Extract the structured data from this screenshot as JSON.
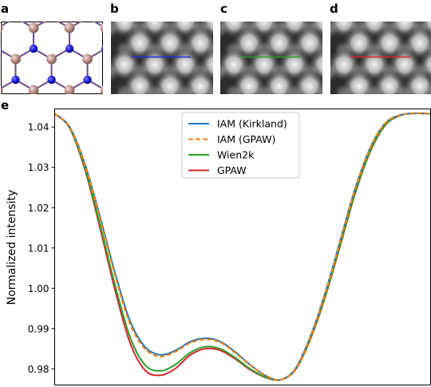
{
  "panels": {
    "a": "a",
    "b": "b",
    "c": "c",
    "d": "d",
    "e": "e"
  },
  "image_panels": [
    {
      "label": "b",
      "line_color": "#1f2fd6"
    },
    {
      "label": "c",
      "line_color": "#2c9a2c"
    },
    {
      "label": "d",
      "line_color": "#d62728"
    }
  ],
  "structure_colors": {
    "atom_b": "#1b1bd8",
    "atom_n": "#b98f86",
    "bond": "#6a4a8a"
  },
  "chart_data": {
    "type": "line",
    "title": "",
    "xlabel": "",
    "ylabel": "Normalized intensity",
    "ylim": [
      0.976,
      1.0445
    ],
    "xlim": [
      0,
      1
    ],
    "yticks": [
      0.98,
      0.99,
      1.0,
      1.01,
      1.02,
      1.03,
      1.04
    ],
    "ytick_labels": [
      "0.98",
      "0.99",
      "1.00",
      "1.01",
      "1.02",
      "1.03",
      "1.04"
    ],
    "legend_position": "top-center",
    "series": [
      {
        "name": "IAM (Kirkland)",
        "color": "#1f77b4",
        "dash": "solid",
        "x": [
          0,
          0.04,
          0.08,
          0.12,
          0.16,
          0.2,
          0.24,
          0.28,
          0.32,
          0.36,
          0.4,
          0.44,
          0.48,
          0.52,
          0.56,
          0.6,
          0.64,
          0.68,
          0.72,
          0.76,
          0.8,
          0.84,
          0.88,
          0.92,
          0.96,
          1.0
        ],
        "y": [
          1.0433,
          1.04,
          1.031,
          1.018,
          1.004,
          0.992,
          0.9855,
          0.9835,
          0.9845,
          0.9867,
          0.9876,
          0.9868,
          0.9842,
          0.981,
          0.9784,
          0.9773,
          0.98,
          0.988,
          0.999,
          1.012,
          1.025,
          1.035,
          1.041,
          1.043,
          1.0434,
          1.0433
        ]
      },
      {
        "name": "IAM (GPAW)",
        "color": "#ff7f0e",
        "dash": "dashed",
        "x": [
          0,
          0.04,
          0.08,
          0.12,
          0.16,
          0.2,
          0.24,
          0.28,
          0.32,
          0.36,
          0.4,
          0.44,
          0.48,
          0.52,
          0.56,
          0.6,
          0.64,
          0.68,
          0.72,
          0.76,
          0.8,
          0.84,
          0.88,
          0.92,
          0.96,
          1.0
        ],
        "y": [
          1.0433,
          1.04,
          1.0308,
          1.0176,
          1.0034,
          0.9913,
          0.985,
          0.9831,
          0.9842,
          0.9864,
          0.9873,
          0.9866,
          0.984,
          0.9809,
          0.9784,
          0.9773,
          0.9799,
          0.9878,
          0.9988,
          1.0118,
          1.0249,
          1.0349,
          1.041,
          1.043,
          1.0434,
          1.0433
        ]
      },
      {
        "name": "Wien2k",
        "color": "#2ca02c",
        "dash": "solid",
        "x": [
          0,
          0.04,
          0.08,
          0.12,
          0.16,
          0.2,
          0.24,
          0.28,
          0.32,
          0.36,
          0.4,
          0.44,
          0.48,
          0.52,
          0.56,
          0.6,
          0.64,
          0.68,
          0.72,
          0.76,
          0.8,
          0.84,
          0.88,
          0.92,
          0.96,
          1.0
        ],
        "y": [
          1.0433,
          1.0398,
          1.03,
          1.016,
          1.001,
          0.988,
          0.981,
          0.9795,
          0.981,
          0.984,
          0.9855,
          0.985,
          0.9828,
          0.98,
          0.978,
          0.9773,
          0.9798,
          0.9875,
          0.9982,
          1.011,
          1.024,
          1.0342,
          1.0406,
          1.0429,
          1.0434,
          1.0433
        ]
      },
      {
        "name": "GPAW",
        "color": "#d62728",
        "dash": "solid",
        "x": [
          0,
          0.04,
          0.08,
          0.12,
          0.16,
          0.2,
          0.24,
          0.28,
          0.32,
          0.36,
          0.4,
          0.44,
          0.48,
          0.52,
          0.56,
          0.6,
          0.64,
          0.68,
          0.72,
          0.76,
          0.8,
          0.84,
          0.88,
          0.92,
          0.96,
          1.0
        ],
        "y": [
          1.0433,
          1.0397,
          1.0296,
          1.0152,
          0.9998,
          0.9866,
          0.9797,
          0.9784,
          0.98,
          0.9834,
          0.985,
          0.9846,
          0.9825,
          0.9798,
          0.9779,
          0.9773,
          0.9797,
          0.9873,
          0.9979,
          1.0107,
          1.0237,
          1.034,
          1.0405,
          1.0429,
          1.0434,
          1.0433
        ]
      }
    ]
  }
}
